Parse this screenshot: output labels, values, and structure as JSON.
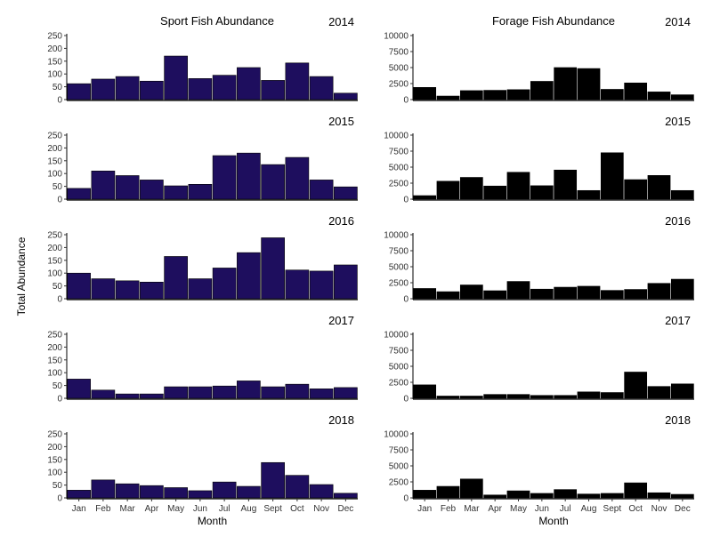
{
  "chart_data": {
    "type": "bar",
    "ylabel": "Total Abundance",
    "xlabel": "Month",
    "categories": [
      "Jan",
      "Feb",
      "Mar",
      "Apr",
      "May",
      "Jun",
      "Jul",
      "Aug",
      "Sept",
      "Oct",
      "Nov",
      "Dec"
    ],
    "grid": false,
    "panels": [
      {
        "title": "Sport Fish Abundance",
        "color": "#1e0e5e",
        "ylim": [
          0,
          250
        ],
        "yticks": [
          0,
          50,
          100,
          150,
          200,
          250
        ],
        "facets": [
          {
            "year": "2014",
            "values": [
              62,
              80,
              90,
              72,
              170,
              82,
              95,
              125,
              75,
              143,
              90,
              25
            ]
          },
          {
            "year": "2015",
            "values": [
              42,
              110,
              92,
              75,
              52,
              58,
              170,
              180,
              135,
              163,
              75,
              48
            ]
          },
          {
            "year": "2016",
            "values": [
              100,
              78,
              70,
              65,
              165,
              78,
              120,
              180,
              238,
              112,
              108,
              132
            ]
          },
          {
            "year": "2017",
            "values": [
              75,
              32,
              17,
              17,
              45,
              45,
              48,
              68,
              45,
              55,
              37,
              42
            ]
          },
          {
            "year": "2018",
            "values": [
              30,
              70,
              55,
              48,
              40,
              28,
              62,
              45,
              138,
              88,
              52,
              18
            ]
          }
        ]
      },
      {
        "title": "Forage Fish Abundance",
        "color": "#000000",
        "ylim": [
          0,
          10000
        ],
        "yticks": [
          0,
          2500,
          5000,
          7500,
          10000
        ],
        "facets": [
          {
            "year": "2014",
            "values": [
              1900,
              550,
              1400,
              1450,
              1550,
              2850,
              5000,
              4850,
              1600,
              2600,
              1200,
              750
            ]
          },
          {
            "year": "2015",
            "values": [
              550,
              2800,
              3400,
              2050,
              4200,
              2100,
              4550,
              1350,
              7250,
              3050,
              3700,
              1350
            ]
          },
          {
            "year": "2016",
            "values": [
              1600,
              1100,
              2150,
              1250,
              2700,
              1500,
              1800,
              1950,
              1300,
              1450,
              2400,
              3050
            ]
          },
          {
            "year": "2017",
            "values": [
              2100,
              350,
              350,
              600,
              600,
              450,
              450,
              1000,
              900,
              4100,
              1850,
              2250
            ]
          },
          {
            "year": "2018",
            "values": [
              1200,
              1800,
              2950,
              450,
              1100,
              700,
              1300,
              600,
              700,
              2350,
              800,
              550
            ]
          }
        ]
      }
    ]
  }
}
